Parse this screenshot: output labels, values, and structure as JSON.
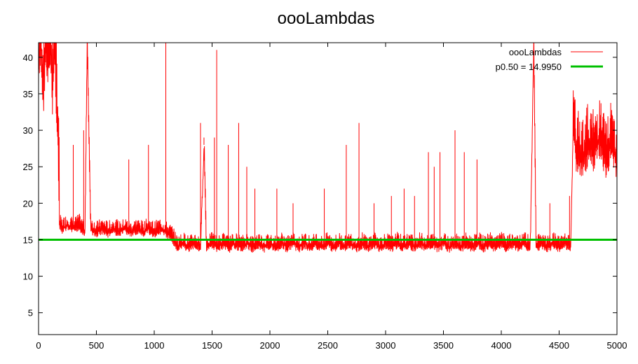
{
  "chart_data": {
    "type": "line",
    "title": "oooLambdas",
    "xlabel": "",
    "ylabel": "",
    "xlim": [
      0,
      5000
    ],
    "ylim": [
      2,
      42
    ],
    "xticks": [
      0,
      500,
      1000,
      1500,
      2000,
      2500,
      3000,
      3500,
      4000,
      4500,
      5000
    ],
    "yticks": [
      5,
      10,
      15,
      20,
      25,
      30,
      35,
      40
    ],
    "grid": false,
    "legend_position": "top-right",
    "series": [
      {
        "name": "oooLambdas",
        "color": "#ff0000",
        "x": [
          0,
          20,
          40,
          60,
          80,
          100,
          120,
          140,
          160,
          170,
          180,
          200,
          250,
          300,
          350,
          400,
          420,
          450,
          500,
          550,
          600,
          650,
          700,
          750,
          800,
          850,
          900,
          950,
          1000,
          1050,
          1100,
          1150,
          1200,
          1250,
          1300,
          1350,
          1400,
          1430,
          1450,
          1500,
          1550,
          1600,
          1650,
          1700,
          1750,
          1800,
          1850,
          1900,
          1950,
          2000,
          2050,
          2100,
          2150,
          2200,
          2250,
          2300,
          2350,
          2400,
          2450,
          2500,
          2550,
          2600,
          2650,
          2700,
          2750,
          2800,
          2850,
          2900,
          2950,
          3000,
          3050,
          3100,
          3150,
          3200,
          3250,
          3300,
          3350,
          3400,
          3450,
          3500,
          3550,
          3600,
          3650,
          3700,
          3750,
          3800,
          3850,
          3900,
          3950,
          4000,
          4050,
          4100,
          4150,
          4200,
          4250,
          4280,
          4300,
          4350,
          4400,
          4450,
          4500,
          4550,
          4600,
          4620,
          4650,
          4700,
          4750,
          4800,
          4850,
          4900,
          4950,
          5000
        ],
        "y": [
          38,
          42,
          35,
          42,
          38,
          42,
          36,
          42,
          32,
          28,
          17,
          16.5,
          17,
          16.5,
          17,
          16,
          42,
          16.5,
          16,
          16.5,
          16,
          16.5,
          16,
          16.5,
          16,
          16.5,
          16,
          16.5,
          16,
          16.5,
          16,
          15.5,
          14,
          14.5,
          14,
          14.5,
          14,
          28,
          14,
          14.5,
          14,
          14.5,
          14,
          14.5,
          14,
          14.5,
          14,
          14.5,
          14,
          14.5,
          14,
          14.5,
          14,
          14.5,
          14,
          14.5,
          14,
          14.5,
          14,
          14.5,
          14,
          14.5,
          14,
          14.5,
          14,
          14.5,
          14,
          14.5,
          14,
          14.5,
          14,
          14.5,
          14,
          14.5,
          14,
          14.5,
          14,
          14.5,
          14,
          14.5,
          14,
          14.5,
          14,
          14.5,
          14,
          14.5,
          14,
          14.5,
          14,
          14.5,
          14,
          14.5,
          14,
          14.5,
          14,
          42,
          14,
          14.5,
          14,
          14.5,
          14,
          14.5,
          14,
          30,
          27,
          26,
          28,
          27,
          29,
          26,
          28,
          26
        ],
        "spikes": [
          [
            420,
            42
          ],
          [
            1100,
            42
          ],
          [
            1400,
            31
          ],
          [
            1430,
            29
          ],
          [
            1540,
            41
          ],
          [
            1640,
            28
          ],
          [
            1730,
            31
          ],
          [
            1800,
            25
          ],
          [
            2060,
            22
          ],
          [
            2200,
            20
          ],
          [
            2470,
            22
          ],
          [
            2660,
            28
          ],
          [
            2770,
            31
          ],
          [
            2900,
            20
          ],
          [
            3050,
            21
          ],
          [
            3160,
            22
          ],
          [
            3370,
            27
          ],
          [
            3470,
            27
          ],
          [
            3600,
            30
          ],
          [
            3680,
            27
          ],
          [
            3790,
            26
          ],
          [
            4280,
            42
          ],
          [
            4420,
            20
          ],
          [
            4590,
            21
          ],
          [
            300,
            28
          ],
          [
            390,
            30
          ],
          [
            780,
            26
          ],
          [
            950,
            28
          ],
          [
            1520,
            29
          ],
          [
            1870,
            22
          ],
          [
            3250,
            21
          ],
          [
            3420,
            25
          ]
        ]
      },
      {
        "name": "p0.50 = 14.9950",
        "color": "#00c000",
        "x": [
          0,
          5000
        ],
        "y": [
          14.995,
          14.995
        ]
      }
    ]
  },
  "legend": [
    {
      "label": "oooLambdas",
      "color": "#ff0000"
    },
    {
      "label": "p0.50 = 14.9950",
      "color": "#00c000"
    }
  ]
}
